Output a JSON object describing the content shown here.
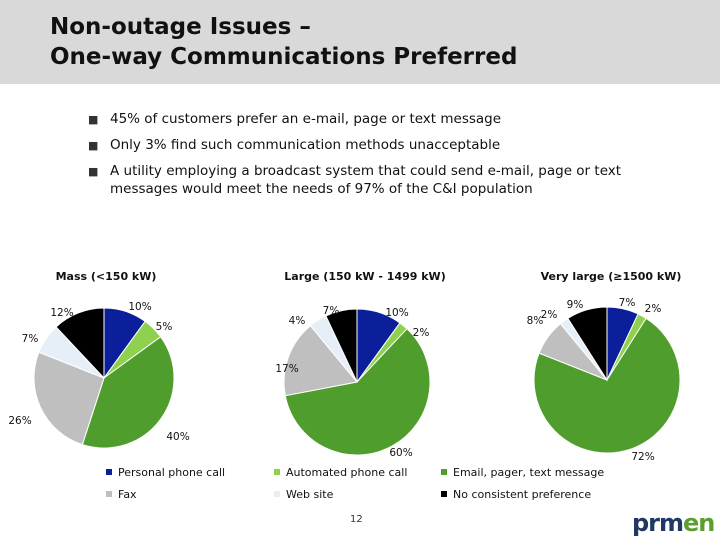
{
  "title_line1": "Non-outage Issues –",
  "title_line2": "One-way Communications Preferred",
  "bullets": [
    "45% of customers prefer an e-mail, page or text message",
    "Only 3% find such communication methods unacceptable",
    "A utility employing a broadcast system that could send e-mail, page or text messages would meet the needs of 97% of the C&I population"
  ],
  "bullet_icon": "square-bullet-icon",
  "colors": {
    "Personal phone call": "#0b1f9a",
    "Automated phone call": "#8fd14f",
    "Email, pager, text message": "#4f9e2d",
    "Fax": "#bfbfbf",
    "Web site": "#e6eef7",
    "No consistent preference": "#000000"
  },
  "chart_data": [
    {
      "type": "pie",
      "title": "Mass (<150 kW)",
      "categories": [
        "Personal phone call",
        "Automated phone call",
        "Email, pager, text message",
        "Fax",
        "Web site",
        "No consistent preference"
      ],
      "values": [
        10,
        5,
        40,
        26,
        7,
        12
      ],
      "labels": [
        "10%",
        "5%",
        "40%",
        "26%",
        "7%",
        "12%"
      ]
    },
    {
      "type": "pie",
      "title": "Large (150 kW - 1499 kW)",
      "categories": [
        "Personal phone call",
        "Automated phone call",
        "Email, pager, text message",
        "Fax",
        "Web site",
        "No consistent preference"
      ],
      "values": [
        10,
        2,
        60,
        17,
        4,
        7
      ],
      "labels": [
        "10%",
        "2%",
        "60%",
        "17%",
        "4%",
        "7%"
      ]
    },
    {
      "type": "pie",
      "title": "Very large (≥1500 kW)",
      "categories": [
        "Personal phone call",
        "Automated phone call",
        "Email, pager, text message",
        "Fax",
        "Web site",
        "No consistent preference"
      ],
      "values": [
        7,
        2,
        72,
        8,
        2,
        9
      ],
      "labels": [
        "7%",
        "2%",
        "72%",
        "8%",
        "2%",
        "9%"
      ]
    }
  ],
  "legend": [
    "Personal phone call",
    "Automated phone call",
    "Email, pager, text message",
    "Fax",
    "Web site",
    "No consistent preference"
  ],
  "page_number": "12",
  "logo": {
    "text_main": "prm",
    "text_accent": "en"
  }
}
